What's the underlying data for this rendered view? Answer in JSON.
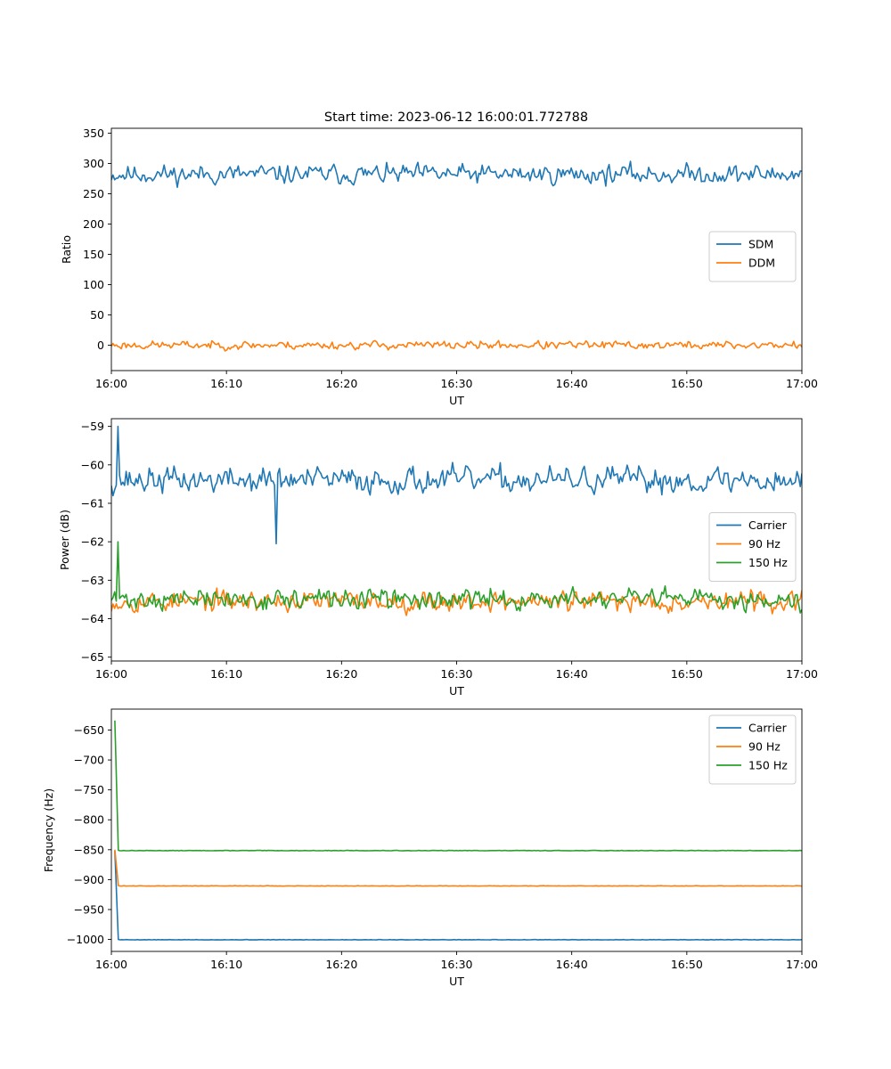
{
  "figure": {
    "title": "Start time: 2023-06-12 16:00:01.772788"
  },
  "chart_data": [
    {
      "type": "line",
      "title": "Start time: 2023-06-12 16:00:01.772788",
      "xlabel": "UT",
      "ylabel": "Ratio",
      "x_ticks": [
        "16:00",
        "16:10",
        "16:20",
        "16:30",
        "16:40",
        "16:50",
        "17:00"
      ],
      "xlim_minutes": [
        0,
        60
      ],
      "ylim": [
        -42,
        358
      ],
      "y_ticks": [
        0,
        50,
        100,
        150,
        200,
        250,
        300,
        350
      ],
      "legend_position": "center-right",
      "grid": false,
      "series": [
        {
          "name": "SDM",
          "color": "#1f77b4",
          "gen": {
            "type": "noise",
            "base": 282,
            "amp": 21,
            "seed": 11,
            "n": 420
          }
        },
        {
          "name": "DDM",
          "color": "#ff7f0e",
          "gen": {
            "type": "noise",
            "base": 0,
            "amp": 9,
            "seed": 23,
            "n": 420
          }
        }
      ]
    },
    {
      "type": "line",
      "xlabel": "UT",
      "ylabel": "Power (dB)",
      "x_ticks": [
        "16:00",
        "16:10",
        "16:20",
        "16:30",
        "16:40",
        "16:50",
        "17:00"
      ],
      "xlim_minutes": [
        0,
        60
      ],
      "ylim": [
        -65.1,
        -58.8
      ],
      "y_ticks": [
        -59,
        -60,
        -61,
        -62,
        -63,
        -64,
        -65
      ],
      "legend_position": "center-right",
      "grid": false,
      "series": [
        {
          "name": "Carrier",
          "color": "#1f77b4",
          "gen": {
            "type": "noise",
            "base": -60.4,
            "amp": 0.45,
            "seed": 37,
            "n": 420,
            "spikes": [
              [
                4,
                -59.0
              ],
              [
                100,
                -62.05
              ]
            ]
          }
        },
        {
          "name": "90 Hz",
          "color": "#ff7f0e",
          "gen": {
            "type": "noise",
            "base": -63.55,
            "amp": 0.35,
            "seed": 53,
            "n": 420
          }
        },
        {
          "name": "150 Hz",
          "color": "#2ca02c",
          "gen": {
            "type": "noise",
            "base": -63.5,
            "amp": 0.35,
            "seed": 71,
            "n": 420,
            "spikes": [
              [
                4,
                -62.0
              ]
            ]
          }
        }
      ]
    },
    {
      "type": "line",
      "xlabel": "UT",
      "ylabel": "Frequency (Hz)",
      "x_ticks": [
        "16:00",
        "16:10",
        "16:20",
        "16:30",
        "16:40",
        "16:50",
        "17:00"
      ],
      "xlim_minutes": [
        0,
        60
      ],
      "ylim": [
        -1020,
        -615
      ],
      "y_ticks": [
        -650,
        -700,
        -750,
        -800,
        -850,
        -900,
        -950,
        -1000
      ],
      "legend_position": "top-right",
      "grid": false,
      "series": [
        {
          "name": "Carrier",
          "color": "#1f77b4",
          "gen": {
            "type": "flat",
            "base": -1000.5,
            "amp": 0.7,
            "seed": 5,
            "n": 360,
            "start_points": [
              [
                0.3,
                -852
              ],
              [
                0.6,
                -1000
              ]
            ]
          }
        },
        {
          "name": "90 Hz",
          "color": "#ff7f0e",
          "gen": {
            "type": "flat",
            "base": -910.5,
            "amp": 0.7,
            "seed": 9,
            "n": 360,
            "start_points": [
              [
                0.3,
                -850
              ],
              [
                0.6,
                -910
              ]
            ]
          }
        },
        {
          "name": "150 Hz",
          "color": "#2ca02c",
          "gen": {
            "type": "flat",
            "base": -851.5,
            "amp": 0.7,
            "seed": 13,
            "n": 360,
            "start_points": [
              [
                0.3,
                -634
              ],
              [
                0.6,
                -851
              ]
            ]
          }
        }
      ]
    }
  ]
}
